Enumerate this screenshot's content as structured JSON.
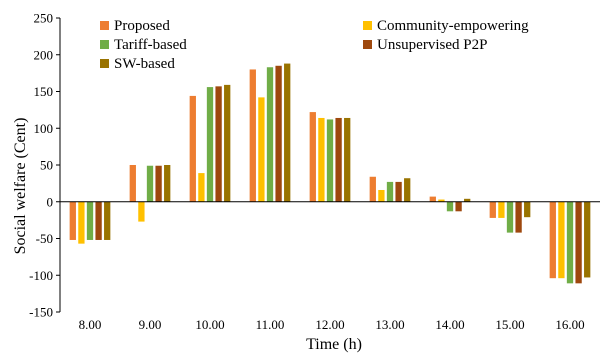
{
  "chart_data": {
    "type": "bar",
    "title": "",
    "xlabel": "Time (h)",
    "ylabel": "Social welfare (Cent)",
    "ylim": [
      -150,
      250
    ],
    "yticks": [
      250,
      200,
      150,
      100,
      50,
      0,
      -50,
      -100,
      -150
    ],
    "grid": false,
    "legend_position": "top",
    "categories": [
      "8.00",
      "9.00",
      "10.00",
      "11.00",
      "12.00",
      "13.00",
      "14.00",
      "15.00",
      "16.00"
    ],
    "series": [
      {
        "name": "Proposed",
        "color": "#ED7D31",
        "values": [
          -52,
          50,
          144,
          180,
          122,
          34,
          7,
          -22,
          -104
        ]
      },
      {
        "name": "Community-empowering",
        "color": "#FFC000",
        "values": [
          -57,
          -27,
          39,
          142,
          114,
          16,
          3,
          -22,
          -104
        ]
      },
      {
        "name": "Tariff-based",
        "color": "#70AD47",
        "values": [
          -52,
          49,
          156,
          183,
          112,
          27,
          -13,
          -42,
          -111
        ]
      },
      {
        "name": "Unsupervised P2P",
        "color": "#9E480E",
        "values": [
          -52,
          49,
          157,
          185,
          114,
          27,
          -13,
          -42,
          -111
        ]
      },
      {
        "name": "SW-based",
        "color": "#997300",
        "values": [
          -52,
          50,
          159,
          188,
          114,
          32,
          4,
          -21,
          -103
        ]
      }
    ]
  }
}
